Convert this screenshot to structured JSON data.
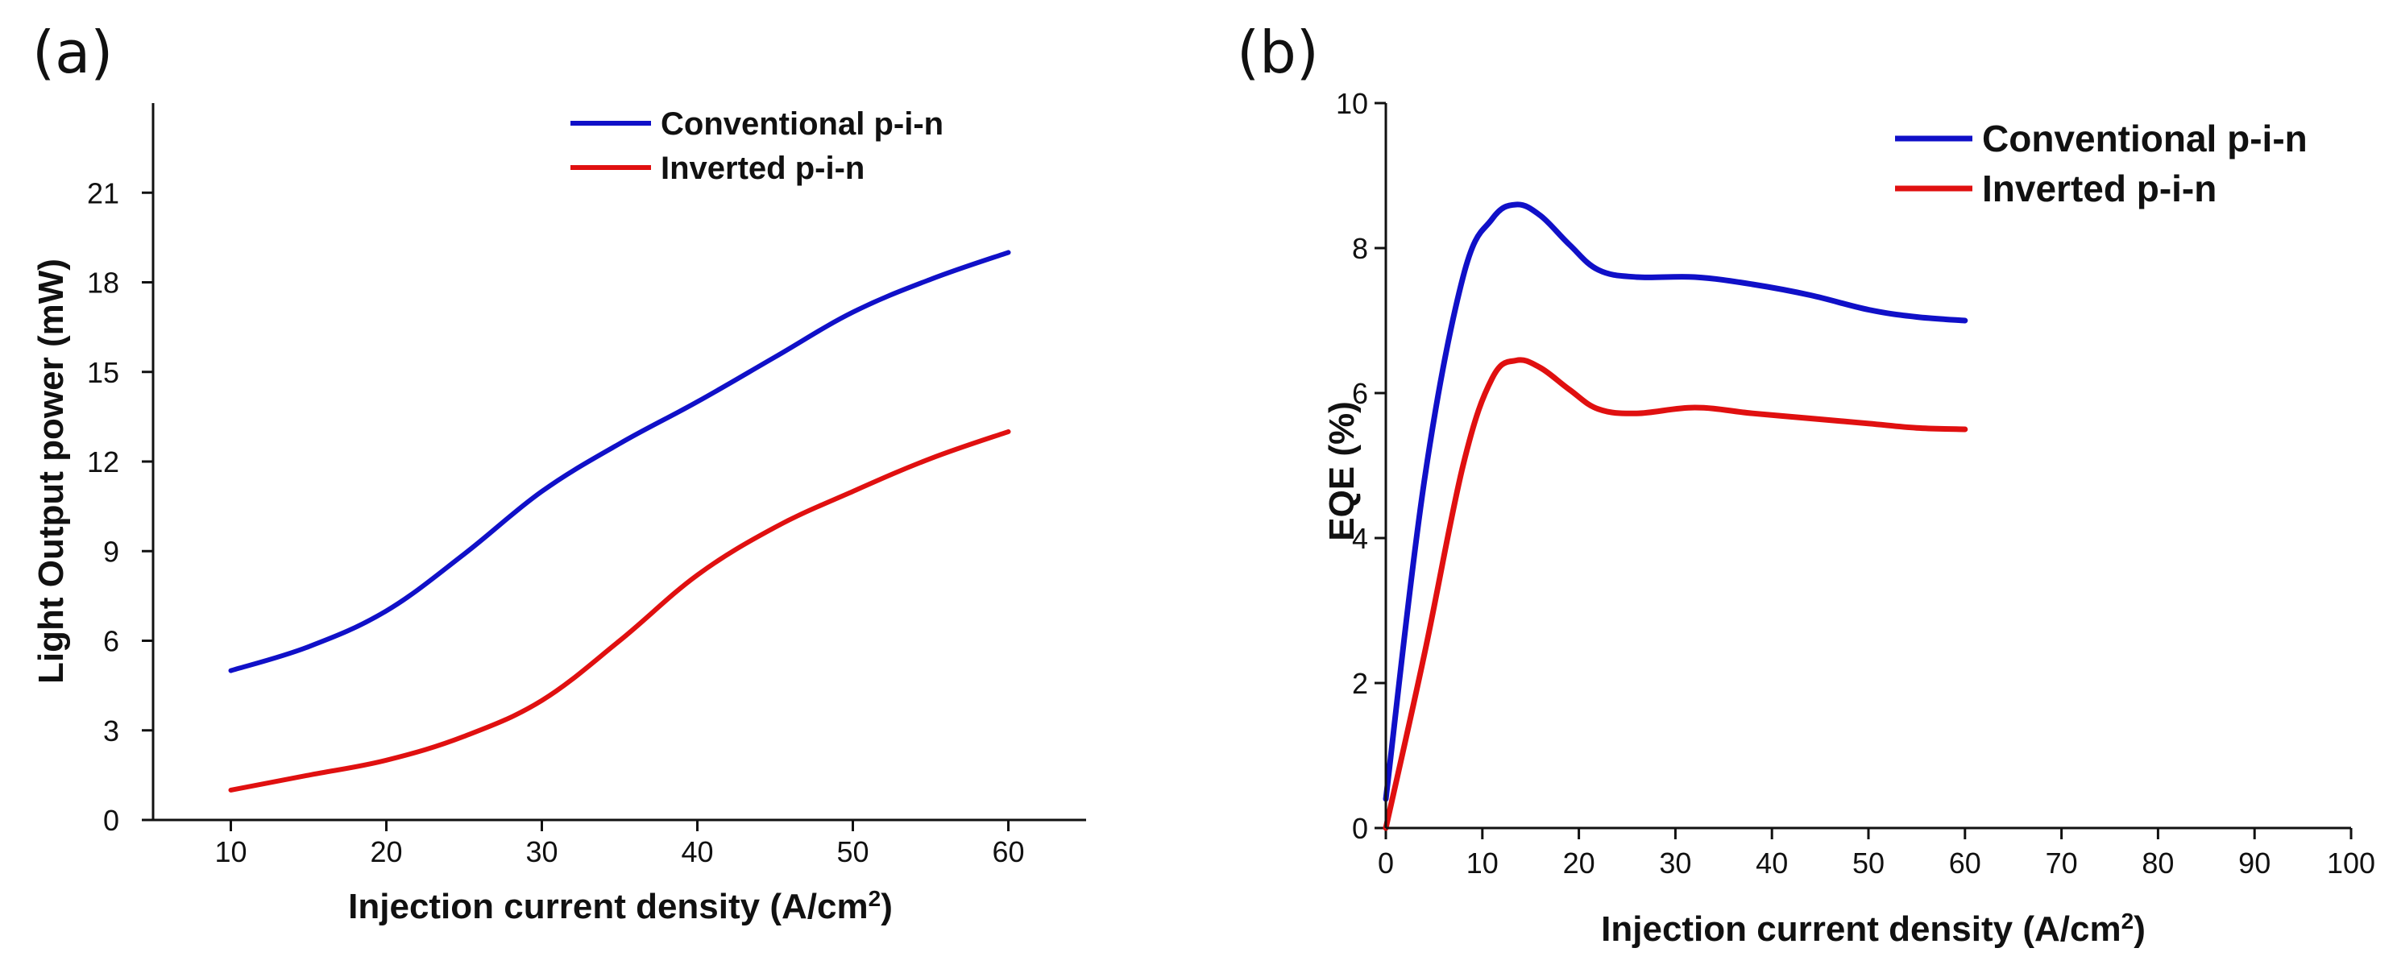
{
  "panels": [
    {
      "label": "(a)"
    },
    {
      "label": "(b)"
    }
  ],
  "chart_data": [
    {
      "type": "line",
      "title": "",
      "xlabel": "Injection current density (A/cm2)",
      "ylabel": "Light Output power (mW)",
      "xlim": [
        5,
        65
      ],
      "ylim": [
        0,
        24
      ],
      "xticks": [
        10,
        20,
        30,
        40,
        50,
        60
      ],
      "yticks": [
        0,
        3,
        6,
        9,
        12,
        15,
        18,
        21
      ],
      "legend": "top-right",
      "series": [
        {
          "name": "Conventional p-i-n",
          "color": "#1010c8",
          "x": [
            10,
            15,
            20,
            25,
            30,
            35,
            40,
            45,
            50,
            55,
            60
          ],
          "y": [
            5.0,
            5.8,
            7.0,
            8.9,
            11.0,
            12.6,
            14.0,
            15.5,
            17.0,
            18.1,
            19.0
          ]
        },
        {
          "name": "Inverted p-i-n",
          "color": "#e01010",
          "x": [
            10,
            15,
            20,
            25,
            30,
            35,
            40,
            45,
            50,
            55,
            60
          ],
          "y": [
            1.0,
            1.5,
            2.0,
            2.8,
            4.0,
            6.0,
            8.2,
            9.8,
            11.0,
            12.1,
            13.0
          ]
        }
      ]
    },
    {
      "type": "line",
      "title": "",
      "xlabel": "Injection current density (A/cm2)",
      "ylabel": "EQE (%)",
      "xlim": [
        0,
        100
      ],
      "ylim": [
        0,
        10
      ],
      "xticks": [
        0,
        10,
        20,
        30,
        40,
        50,
        60,
        70,
        80,
        90,
        100
      ],
      "yticks": [
        0,
        2,
        4,
        6,
        8,
        10
      ],
      "legend": "top-right",
      "series": [
        {
          "name": "Conventional p-i-n",
          "color": "#1010c8",
          "x": [
            0,
            4,
            8,
            11,
            13.5,
            16,
            19,
            22,
            26,
            32,
            38,
            44,
            50,
            55,
            60
          ],
          "y": [
            0.4,
            4.8,
            7.6,
            8.4,
            8.6,
            8.45,
            8.05,
            7.7,
            7.6,
            7.6,
            7.5,
            7.35,
            7.15,
            7.05,
            7.0
          ]
        },
        {
          "name": "Inverted p-i-n",
          "color": "#e01010",
          "x": [
            0,
            4,
            8,
            11,
            13.5,
            16,
            19,
            22,
            26,
            32,
            38,
            44,
            50,
            55,
            60
          ],
          "y": [
            0.0,
            2.4,
            5.0,
            6.2,
            6.45,
            6.35,
            6.05,
            5.78,
            5.72,
            5.8,
            5.72,
            5.65,
            5.58,
            5.52,
            5.5
          ]
        }
      ]
    }
  ]
}
